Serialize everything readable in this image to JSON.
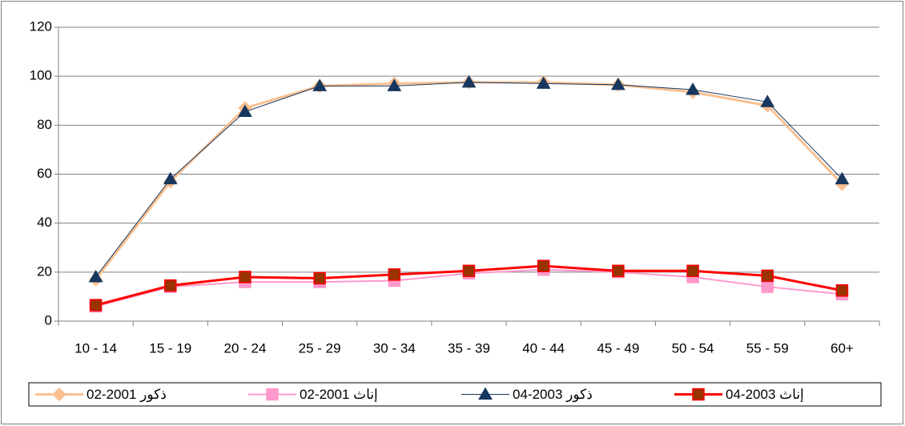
{
  "chart_data": {
    "type": "line",
    "categories": [
      "10 - 14",
      "15 - 19",
      "20 - 24",
      "25 - 29",
      "30 - 34",
      "35 - 39",
      "40 - 44",
      "45 - 49",
      "50 - 54",
      "55 - 59",
      "60+"
    ],
    "series": [
      {
        "name": "ذكور 2001-02",
        "color": "#fac090",
        "marker": "diamond",
        "marker_color": "#fac090",
        "width": 3,
        "values": [
          17,
          57,
          87,
          96,
          97,
          97.5,
          97.5,
          96.5,
          93.5,
          88,
          56
        ]
      },
      {
        "name": "إناث 2001-02",
        "color": "#ff99cc",
        "marker": "square",
        "marker_color": "#ff99cc",
        "width": 2,
        "values": [
          6,
          14,
          16,
          16,
          16.5,
          19.5,
          21,
          20,
          18,
          14,
          11
        ]
      },
      {
        "name": "ذكور 2003-04",
        "color": "#17375e",
        "marker": "triangle",
        "marker_color": "#17375e",
        "width": 1,
        "values": [
          18,
          58,
          85.5,
          96,
          96,
          97.5,
          97,
          96.5,
          94.5,
          89.5,
          58
        ]
      },
      {
        "name": "إناث 2003-04",
        "color": "#ff0000",
        "marker": "square",
        "marker_color": "#993300",
        "width": 3,
        "values": [
          6.5,
          14.5,
          18,
          17.5,
          19,
          20.5,
          22.5,
          20.5,
          20.5,
          18.5,
          12.5
        ]
      }
    ],
    "ylim": [
      0,
      120
    ],
    "yticks": [
      0,
      20,
      40,
      60,
      80,
      100,
      120
    ],
    "grid": true,
    "legend": "bottom"
  }
}
